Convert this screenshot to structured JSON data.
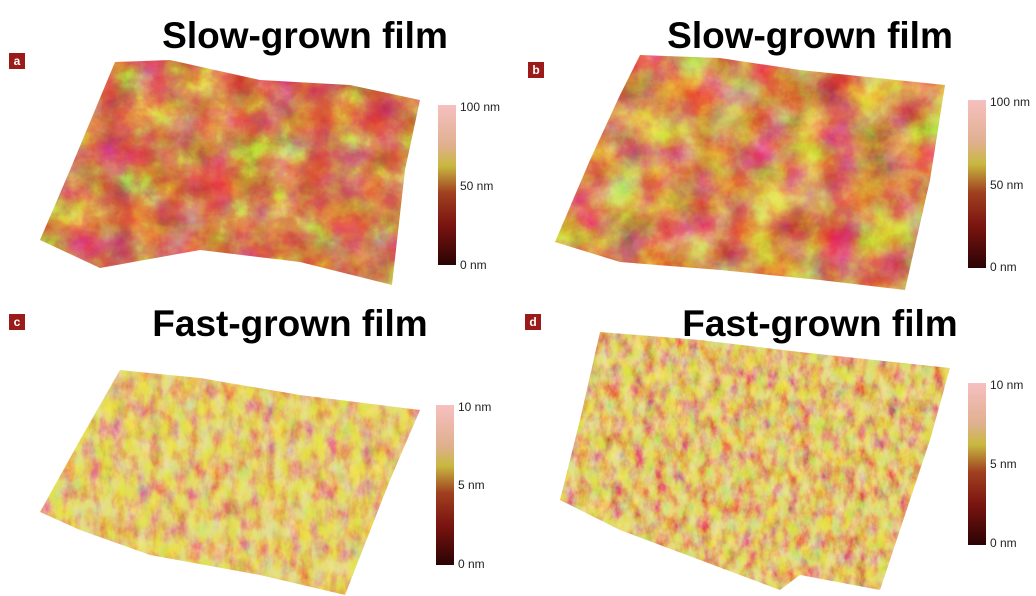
{
  "panels": [
    {
      "label": "a",
      "title": "Slow-grown film",
      "scale": [
        "100 nm",
        "50 nm",
        "0 nm"
      ]
    },
    {
      "label": "b",
      "title": "Slow-grown film",
      "scale": [
        "100 nm",
        "50 nm",
        "0 nm"
      ]
    },
    {
      "label": "c",
      "title": "Fast-grown film",
      "scale": [
        "10 nm",
        "5 nm",
        "0 nm"
      ]
    },
    {
      "label": "d",
      "title": "Fast-grown film",
      "scale": [
        "10 nm",
        "5 nm",
        "0 nm"
      ]
    }
  ]
}
